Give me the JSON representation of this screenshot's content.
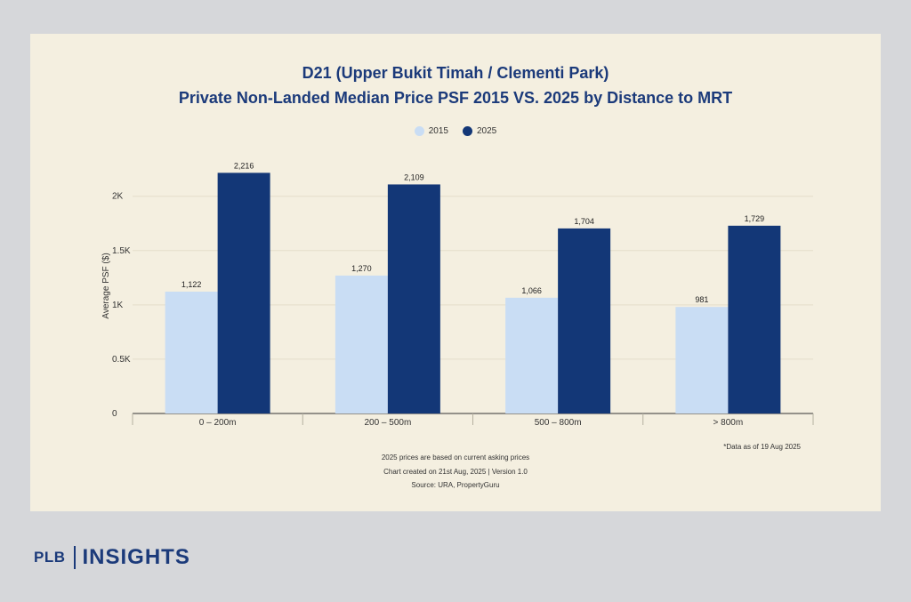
{
  "chart_data": {
    "type": "bar",
    "title": "D21 (Upper Bukit Timah / Clementi Park)",
    "subtitle": "Private Non-Landed Median Price PSF 2015 VS. 2025 by Distance to MRT",
    "ylabel": "Average PSF ($)",
    "xlabel": "",
    "categories": [
      "0 – 200m",
      "200 – 500m",
      "500 – 800m",
      "> 800m"
    ],
    "series": [
      {
        "name": "2015",
        "values": [
          1122,
          1270,
          1066,
          981
        ],
        "labels": [
          "1,122",
          "1,270",
          "1,066",
          "981"
        ],
        "color": "#c9ddf4"
      },
      {
        "name": "2025",
        "values": [
          2216,
          2109,
          1704,
          1729
        ],
        "labels": [
          "2,216",
          "2,109",
          "1,704",
          "1,729"
        ],
        "color": "#133777"
      }
    ],
    "ylim": [
      0,
      2350
    ],
    "yticks": [
      0,
      500,
      1000,
      1500,
      2000
    ],
    "ytick_labels": [
      "0",
      "0.5K",
      "1K",
      "1.5K",
      "2K"
    ],
    "grid": true,
    "legend_position": "top-center"
  },
  "notes": {
    "data_date": "*Data as of 19 Aug 2025",
    "asking_prices": "2025 prices are based on current asking prices",
    "created": "Chart created on 21st Aug, 2025 | Version 1.0",
    "source": "Source: URA, PropertyGuru"
  },
  "brand": {
    "plb": "PLB",
    "insights": "INSIGHTS"
  },
  "colors": {
    "title": "#1b3a7a",
    "panel": "#f4efe0",
    "background": "#d6d7da"
  }
}
